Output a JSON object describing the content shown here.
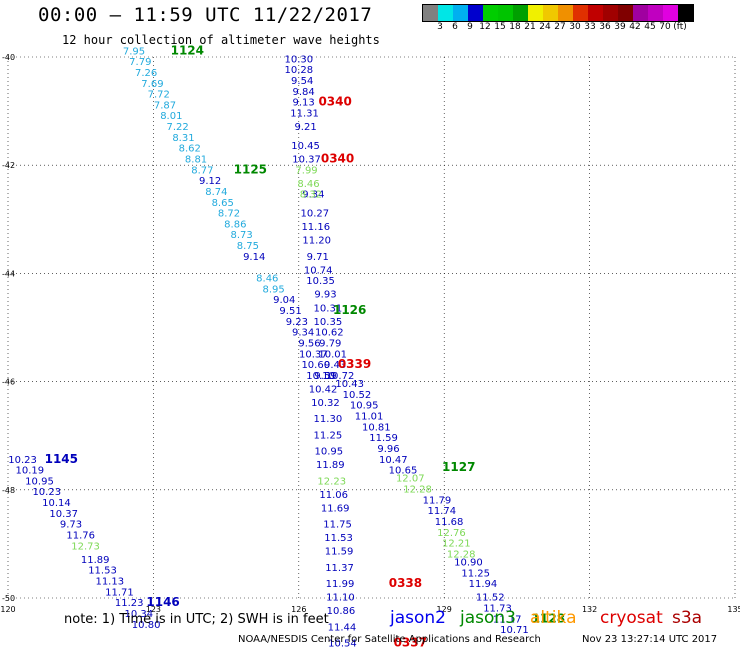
{
  "header": {
    "title": "00:00 – 11:59 UTC 11/22/2017",
    "subtitle": "12 hour collection of altimeter wave heights"
  },
  "colorbar": {
    "colors": [
      "#808080",
      "#00e6e6",
      "#00b0f0",
      "#0000cd",
      "#00cd00",
      "#00c400",
      "#00a000",
      "#f0f000",
      "#f0c800",
      "#f09000",
      "#e03000",
      "#c00000",
      "#a00000",
      "#800000",
      "#a000a0",
      "#c000c0",
      "#e000e0",
      "#000000"
    ],
    "labels": [
      "3",
      "6",
      "9",
      "12",
      "15",
      "18",
      "21",
      "24",
      "27",
      "30",
      "33",
      "36",
      "39",
      "42",
      "45",
      "70",
      "(ft)"
    ]
  },
  "axes": {
    "x_ticks": [
      "120",
      "123",
      "126",
      "129",
      "132",
      "135"
    ],
    "y_ticks": [
      "-40",
      "-42",
      "-44",
      "-46",
      "-48",
      "-50"
    ]
  },
  "chart_data": {
    "type": "map-annotations",
    "x_range": [
      120,
      135
    ],
    "y_range": [
      -50,
      -40
    ],
    "satellite_colors": {
      "jason2": "#0000bb",
      "jason3": "#008800",
      "jason3_light": "#7ed957",
      "cryosat": "#dd0000",
      "cyan": "#22aadd"
    },
    "passes": [
      {
        "id": "pass-1124",
        "color": "cyan",
        "points": [
          {
            "lon": 122.6,
            "lat": -39.95,
            "v": "7.95"
          },
          {
            "lon": 122.73,
            "lat": -40.15,
            "v": "7.79"
          },
          {
            "lon": 122.85,
            "lat": -40.35,
            "v": "7.26"
          },
          {
            "lon": 122.98,
            "lat": -40.55,
            "v": "7.69"
          },
          {
            "lon": 123.11,
            "lat": -40.75,
            "v": "7.72"
          },
          {
            "lon": 123.24,
            "lat": -40.95,
            "v": "7.87"
          },
          {
            "lon": 123.37,
            "lat": -41.15,
            "v": "8.01"
          },
          {
            "lon": 123.5,
            "lat": -41.35,
            "v": "7.22"
          },
          {
            "lon": 123.62,
            "lat": -41.55,
            "v": "8.31"
          },
          {
            "lon": 123.75,
            "lat": -41.75,
            "v": "8.62"
          },
          {
            "lon": 123.88,
            "lat": -41.95,
            "v": "8.81"
          },
          {
            "lon": 124.01,
            "lat": -42.15,
            "v": "8.77"
          },
          {
            "lon": 124.3,
            "lat": -42.55,
            "v": "8.74"
          },
          {
            "lon": 124.43,
            "lat": -42.75,
            "v": "8.65"
          },
          {
            "lon": 124.56,
            "lat": -42.95,
            "v": "8.72"
          },
          {
            "lon": 124.69,
            "lat": -43.15,
            "v": "8.86"
          },
          {
            "lon": 124.82,
            "lat": -43.35,
            "v": "8.73"
          },
          {
            "lon": 124.95,
            "lat": -43.55,
            "v": "8.75"
          },
          {
            "lon": 125.35,
            "lat": -44.15,
            "v": "8.46"
          },
          {
            "lon": 125.48,
            "lat": -44.35,
            "v": "8.95"
          }
        ],
        "dark_points": [
          {
            "lon": 124.17,
            "lat": -42.35,
            "v": "9.12"
          },
          {
            "lon": 125.08,
            "lat": -43.75,
            "v": "9.14"
          },
          {
            "lon": 125.7,
            "lat": -44.55,
            "v": "9.04"
          },
          {
            "lon": 125.83,
            "lat": -44.75,
            "v": "9.51"
          },
          {
            "lon": 125.96,
            "lat": -44.95,
            "v": "9.23"
          },
          {
            "lon": 126.09,
            "lat": -45.15,
            "v": "9.34"
          },
          {
            "lon": 126.22,
            "lat": -45.35,
            "v": "9.56"
          },
          {
            "lon": 126.3,
            "lat": -45.55,
            "v": "10.37"
          },
          {
            "lon": 126.35,
            "lat": -45.75,
            "v": "10.60"
          },
          {
            "lon": 126.45,
            "lat": -45.95,
            "v": "10.10"
          }
        ],
        "time_labels": [
          {
            "lon": 123.7,
            "lat": -39.95,
            "t": "1124",
            "color": "jason3"
          },
          {
            "lon": 125.0,
            "lat": -42.15,
            "t": "1125",
            "color": "jason3"
          }
        ]
      },
      {
        "id": "pass-0340",
        "color": "jason2",
        "points": [
          {
            "lon": 126.0,
            "lat": -40.1,
            "v": "10.30"
          },
          {
            "lon": 126.0,
            "lat": -40.3,
            "v": "10.28"
          },
          {
            "lon": 126.07,
            "lat": -40.5,
            "v": "9.54"
          },
          {
            "lon": 126.1,
            "lat": -40.7,
            "v": "9.84"
          },
          {
            "lon": 126.1,
            "lat": -40.9,
            "v": "9.13"
          },
          {
            "lon": 126.12,
            "lat": -41.1,
            "v": "11.31"
          },
          {
            "lon": 126.14,
            "lat": -41.35,
            "v": "9.21"
          },
          {
            "lon": 126.14,
            "lat": -41.7,
            "v": "10.45"
          },
          {
            "lon": 126.16,
            "lat": -41.95,
            "v": "10.37"
          },
          {
            "lon": 126.3,
            "lat": -42.6,
            "v": "9.34"
          },
          {
            "lon": 126.33,
            "lat": -42.95,
            "v": "10.27"
          },
          {
            "lon": 126.35,
            "lat": -43.2,
            "v": "11.16"
          },
          {
            "lon": 126.37,
            "lat": -43.45,
            "v": "11.20"
          },
          {
            "lon": 126.39,
            "lat": -43.75,
            "v": "9.71"
          },
          {
            "lon": 126.4,
            "lat": -44.0,
            "v": "10.74"
          },
          {
            "lon": 126.45,
            "lat": -44.2,
            "v": "10.35"
          },
          {
            "lon": 126.55,
            "lat": -44.45,
            "v": "9.93"
          },
          {
            "lon": 126.6,
            "lat": -44.7,
            "v": "10.31"
          },
          {
            "lon": 126.6,
            "lat": -44.95,
            "v": "10.35"
          },
          {
            "lon": 126.63,
            "lat": -45.15,
            "v": "10.62"
          },
          {
            "lon": 126.65,
            "lat": -45.35,
            "v": "9.79"
          },
          {
            "lon": 126.7,
            "lat": -45.55,
            "v": "10.01"
          },
          {
            "lon": 126.75,
            "lat": -45.75,
            "v": "9.43"
          },
          {
            "lon": 126.85,
            "lat": -45.95,
            "v": "10.72"
          },
          {
            "lon": 127.05,
            "lat": -46.1,
            "v": "10.43"
          },
          {
            "lon": 127.2,
            "lat": -46.3,
            "v": "10.52"
          },
          {
            "lon": 127.35,
            "lat": -46.5,
            "v": "10.95"
          },
          {
            "lon": 127.45,
            "lat": -46.7,
            "v": "11.01"
          },
          {
            "lon": 127.6,
            "lat": -46.9,
            "v": "10.81"
          },
          {
            "lon": 127.75,
            "lat": -47.1,
            "v": "11.59"
          },
          {
            "lon": 127.85,
            "lat": -47.3,
            "v": "9.96"
          },
          {
            "lon": 127.95,
            "lat": -47.5,
            "v": "10.47"
          },
          {
            "lon": 128.15,
            "lat": -47.7,
            "v": "10.65"
          }
        ],
        "light_points": [
          {
            "lon": 126.16,
            "lat": -42.15,
            "v": "7.99"
          },
          {
            "lon": 126.2,
            "lat": -42.4,
            "v": "8.46"
          },
          {
            "lon": 126.25,
            "lat": -42.6,
            "v": "8.32"
          }
        ],
        "time_labels": [
          {
            "lon": 126.75,
            "lat": -40.9,
            "t": "0340",
            "color": "cryosat"
          },
          {
            "lon": 126.8,
            "lat": -41.95,
            "t": "0340",
            "color": "cryosat"
          },
          {
            "lon": 127.05,
            "lat": -44.75,
            "t": "1126",
            "color": "jason3"
          },
          {
            "lon": 127.15,
            "lat": -45.75,
            "t": "0339",
            "color": "cryosat"
          }
        ]
      },
      {
        "id": "pass-0338",
        "color": "jason2",
        "points": [
          {
            "lon": 126.55,
            "lat": -45.95,
            "v": "9.59"
          },
          {
            "lon": 126.5,
            "lat": -46.2,
            "v": "10.42"
          },
          {
            "lon": 126.55,
            "lat": -46.45,
            "v": "10.32"
          },
          {
            "lon": 126.6,
            "lat": -46.75,
            "v": "11.30"
          },
          {
            "lon": 126.6,
            "lat": -47.05,
            "v": "11.25"
          },
          {
            "lon": 126.62,
            "lat": -47.35,
            "v": "10.95"
          },
          {
            "lon": 126.65,
            "lat": -47.6,
            "v": "11.89"
          },
          {
            "lon": 126.72,
            "lat": -48.15,
            "v": "11.06"
          },
          {
            "lon": 126.75,
            "lat": -48.4,
            "v": "11.69"
          },
          {
            "lon": 126.8,
            "lat": -48.7,
            "v": "11.75"
          },
          {
            "lon": 126.82,
            "lat": -48.95,
            "v": "11.53"
          },
          {
            "lon": 126.83,
            "lat": -49.2,
            "v": "11.59"
          },
          {
            "lon": 126.84,
            "lat": -49.5,
            "v": "11.37"
          },
          {
            "lon": 126.85,
            "lat": -49.8,
            "v": "11.99"
          },
          {
            "lon": 126.86,
            "lat": -50.05,
            "v": "11.10"
          },
          {
            "lon": 126.87,
            "lat": -50.3,
            "v": "10.86"
          },
          {
            "lon": 126.89,
            "lat": -50.6,
            "v": "11.44"
          },
          {
            "lon": 126.9,
            "lat": -50.9,
            "v": "10.54"
          }
        ],
        "light_points": [
          {
            "lon": 126.68,
            "lat": -47.9,
            "v": "12.23"
          }
        ],
        "time_labels": [
          {
            "lon": 128.2,
            "lat": -49.8,
            "t": "0338",
            "color": "cryosat"
          },
          {
            "lon": 128.3,
            "lat": -50.9,
            "t": "0337",
            "color": "cryosat"
          }
        ]
      },
      {
        "id": "pass-1127",
        "color": "jason2",
        "points": [
          {
            "lon": 128.85,
            "lat": -48.25,
            "v": "11.79"
          },
          {
            "lon": 128.95,
            "lat": -48.45,
            "v": "11.74"
          },
          {
            "lon": 129.1,
            "lat": -48.65,
            "v": "11.68"
          },
          {
            "lon": 129.5,
            "lat": -49.4,
            "v": "10.90"
          },
          {
            "lon": 129.65,
            "lat": -49.6,
            "v": "11.25"
          },
          {
            "lon": 129.8,
            "lat": -49.8,
            "v": "11.94"
          },
          {
            "lon": 129.95,
            "lat": -50.05,
            "v": "11.52"
          },
          {
            "lon": 130.1,
            "lat": -50.25,
            "v": "11.73"
          },
          {
            "lon": 130.3,
            "lat": -50.45,
            "v": "11.17"
          },
          {
            "lon": 130.45,
            "lat": -50.65,
            "v": "10.71"
          }
        ],
        "light_points": [
          {
            "lon": 128.3,
            "lat": -47.85,
            "v": "12.07"
          },
          {
            "lon": 128.45,
            "lat": -48.05,
            "v": "12.28"
          },
          {
            "lon": 129.15,
            "lat": -48.85,
            "v": "12.76"
          },
          {
            "lon": 129.25,
            "lat": -49.05,
            "v": "12.21"
          },
          {
            "lon": 129.35,
            "lat": -49.25,
            "v": "12.28"
          }
        ],
        "time_labels": [
          {
            "lon": 129.3,
            "lat": -47.65,
            "t": "1127",
            "color": "jason3"
          },
          {
            "lon": 131.15,
            "lat": -50.45,
            "t": "1128",
            "color": "jason3"
          }
        ]
      },
      {
        "id": "pass-1145",
        "color": "jason2",
        "points": [
          {
            "lon": 120.3,
            "lat": -47.5,
            "v": "10.23"
          },
          {
            "lon": 120.45,
            "lat": -47.7,
            "v": "10.19"
          },
          {
            "lon": 120.65,
            "lat": -47.9,
            "v": "10.95"
          },
          {
            "lon": 120.8,
            "lat": -48.1,
            "v": "10.23"
          },
          {
            "lon": 121.0,
            "lat": -48.3,
            "v": "10.14"
          },
          {
            "lon": 121.15,
            "lat": -48.5,
            "v": "10.37"
          },
          {
            "lon": 121.3,
            "lat": -48.7,
            "v": "9.73"
          },
          {
            "lon": 121.5,
            "lat": -48.9,
            "v": "11.76"
          },
          {
            "lon": 121.8,
            "lat": -49.35,
            "v": "11.89"
          },
          {
            "lon": 121.95,
            "lat": -49.55,
            "v": "11.53"
          },
          {
            "lon": 122.1,
            "lat": -49.75,
            "v": "11.13"
          },
          {
            "lon": 122.3,
            "lat": -49.95,
            "v": "11.71"
          },
          {
            "lon": 122.5,
            "lat": -50.15,
            "v": "11.23"
          },
          {
            "lon": 122.7,
            "lat": -50.35,
            "v": "10.34"
          },
          {
            "lon": 122.85,
            "lat": -50.55,
            "v": "10.80"
          }
        ],
        "light_points": [
          {
            "lon": 121.6,
            "lat": -49.1,
            "v": "12.73"
          }
        ],
        "time_labels": [
          {
            "lon": 121.1,
            "lat": -47.5,
            "t": "1145",
            "color": "jason2"
          },
          {
            "lon": 123.2,
            "lat": -50.15,
            "t": "1146",
            "color": "jason2"
          }
        ]
      }
    ]
  },
  "footer": {
    "note": "note: 1) Time is in UTC; 2) SWH is in feet",
    "satellites": [
      {
        "name": "jason2",
        "color": "#0000ee"
      },
      {
        "name": "jason3",
        "color": "#008800"
      },
      {
        "name": "altika",
        "color": "#ff9900"
      },
      {
        "name": "cryosat",
        "color": "#dd0000"
      },
      {
        "name": "s3a",
        "color": "#aa0000"
      }
    ],
    "credit": "NOAA/NESDIS Center for Satellite Applications and Research",
    "timestamp": "Nov 23 13:27:14 UTC 2017"
  }
}
